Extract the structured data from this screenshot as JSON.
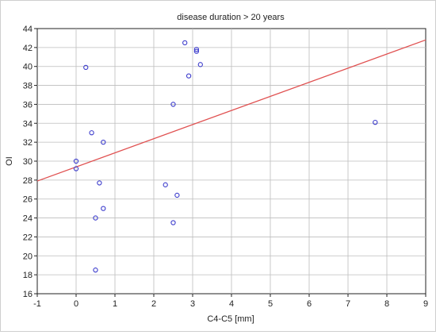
{
  "chart_data": {
    "type": "scatter",
    "title": "disease duration > 20 years",
    "xlabel": "C4-C5 [mm]",
    "ylabel": "OI",
    "xlim": [
      -1,
      9
    ],
    "ylim": [
      16,
      44
    ],
    "xticks": [
      -1,
      0,
      1,
      2,
      3,
      4,
      5,
      6,
      7,
      8,
      9
    ],
    "yticks": [
      16,
      18,
      20,
      22,
      24,
      26,
      28,
      30,
      32,
      34,
      36,
      38,
      40,
      42,
      44
    ],
    "grid": true,
    "legend": "none",
    "marker_color": "#3b3bcc",
    "fit_line_color": "#e05050",
    "points": [
      {
        "x": 0.25,
        "y": 39.9
      },
      {
        "x": 2.8,
        "y": 42.5
      },
      {
        "x": 3.1,
        "y": 41.8
      },
      {
        "x": 3.1,
        "y": 41.6
      },
      {
        "x": 3.2,
        "y": 40.2
      },
      {
        "x": 2.9,
        "y": 39.0
      },
      {
        "x": 2.5,
        "y": 36.0
      },
      {
        "x": 0.4,
        "y": 33.0
      },
      {
        "x": 0.7,
        "y": 32.0
      },
      {
        "x": 0.0,
        "y": 30.0
      },
      {
        "x": 0.0,
        "y": 29.2
      },
      {
        "x": 0.6,
        "y": 27.7
      },
      {
        "x": 2.3,
        "y": 27.5
      },
      {
        "x": 2.6,
        "y": 26.4
      },
      {
        "x": 0.7,
        "y": 25.0
      },
      {
        "x": 0.5,
        "y": 24.0
      },
      {
        "x": 2.5,
        "y": 23.5
      },
      {
        "x": 0.5,
        "y": 18.5
      },
      {
        "x": 7.7,
        "y": 34.1
      }
    ],
    "fit_line": {
      "x": [
        -1,
        9
      ],
      "y": [
        27.9,
        42.8
      ]
    }
  }
}
